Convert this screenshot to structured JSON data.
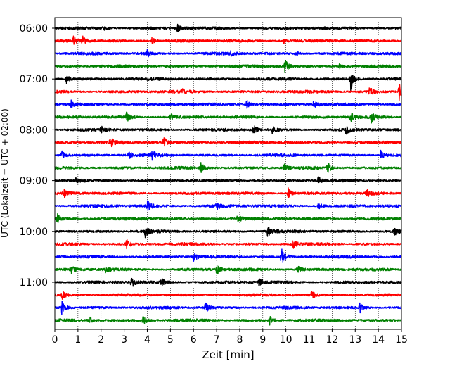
{
  "chart_data": {
    "type": "line",
    "title": "",
    "xlabel": "Zeit  [min]",
    "ylabel": "UTC (Lokalzeit = UTC + 02:00)",
    "xlim": [
      0,
      15
    ],
    "x_ticks": [
      0,
      1,
      2,
      3,
      4,
      5,
      6,
      7,
      8,
      9,
      10,
      11,
      12,
      13,
      14,
      15
    ],
    "y_tick_labels": [
      "06:00",
      "07:00",
      "08:00",
      "09:00",
      "10:00",
      "11:00"
    ],
    "grid": "vertical-dotted",
    "legend": "none",
    "traces_per_hour": 4,
    "trace_colors": [
      "#000000",
      "#ff0000",
      "#0000ff",
      "#008000"
    ],
    "traces": [
      {
        "start": "06:00",
        "color": "#000000",
        "events": [
          {
            "t": 5.3,
            "a": 0.5
          },
          {
            "t": 2.1,
            "a": 0.3
          }
        ]
      },
      {
        "start": "06:15",
        "color": "#ff0000",
        "events": [
          {
            "t": 0.8,
            "a": 0.6
          },
          {
            "t": 1.2,
            "a": 0.5
          },
          {
            "t": 4.2,
            "a": 0.4
          },
          {
            "t": 9.9,
            "a": 0.3
          }
        ]
      },
      {
        "start": "06:30",
        "color": "#0000ff",
        "events": [
          {
            "t": 4.0,
            "a": 0.4
          },
          {
            "t": 7.6,
            "a": 0.3
          },
          {
            "t": 10.4,
            "a": 0.3
          }
        ]
      },
      {
        "start": "06:45",
        "color": "#008000",
        "events": [
          {
            "t": 9.95,
            "a": 0.8
          },
          {
            "t": 12.3,
            "a": 0.3
          }
        ]
      },
      {
        "start": "07:00",
        "color": "#000000",
        "events": [
          {
            "t": 0.5,
            "a": 0.5
          },
          {
            "t": 12.8,
            "a": 1.4
          }
        ]
      },
      {
        "start": "07:15",
        "color": "#ff0000",
        "events": [
          {
            "t": 5.5,
            "a": 0.3
          },
          {
            "t": 13.6,
            "a": 0.6
          },
          {
            "t": 14.9,
            "a": 1.0
          }
        ]
      },
      {
        "start": "07:30",
        "color": "#0000ff",
        "events": [
          {
            "t": 0.7,
            "a": 0.4
          },
          {
            "t": 8.3,
            "a": 0.5
          },
          {
            "t": 11.2,
            "a": 0.4
          }
        ]
      },
      {
        "start": "07:45",
        "color": "#008000",
        "events": [
          {
            "t": 3.1,
            "a": 0.6
          },
          {
            "t": 5.0,
            "a": 0.4
          },
          {
            "t": 12.8,
            "a": 0.5
          },
          {
            "t": 13.7,
            "a": 0.6
          }
        ]
      },
      {
        "start": "08:00",
        "color": "#000000",
        "events": [
          {
            "t": 2.0,
            "a": 0.4
          },
          {
            "t": 8.6,
            "a": 0.5
          },
          {
            "t": 9.4,
            "a": 0.4
          },
          {
            "t": 12.6,
            "a": 0.5
          }
        ]
      },
      {
        "start": "08:15",
        "color": "#ff0000",
        "events": [
          {
            "t": 2.4,
            "a": 0.6
          },
          {
            "t": 4.7,
            "a": 0.7
          }
        ]
      },
      {
        "start": "08:30",
        "color": "#0000ff",
        "events": [
          {
            "t": 0.3,
            "a": 0.6
          },
          {
            "t": 3.2,
            "a": 0.5
          },
          {
            "t": 4.2,
            "a": 0.6
          },
          {
            "t": 14.1,
            "a": 0.5
          }
        ]
      },
      {
        "start": "08:45",
        "color": "#008000",
        "events": [
          {
            "t": 6.3,
            "a": 0.6
          },
          {
            "t": 9.9,
            "a": 0.5
          },
          {
            "t": 11.8,
            "a": 0.6
          }
        ]
      },
      {
        "start": "09:00",
        "color": "#000000",
        "events": [
          {
            "t": 0.9,
            "a": 0.4
          },
          {
            "t": 11.4,
            "a": 0.5
          }
        ]
      },
      {
        "start": "09:15",
        "color": "#ff0000",
        "events": [
          {
            "t": 0.4,
            "a": 0.4
          },
          {
            "t": 10.1,
            "a": 0.6
          },
          {
            "t": 13.5,
            "a": 0.5
          }
        ]
      },
      {
        "start": "09:30",
        "color": "#0000ff",
        "events": [
          {
            "t": 4.0,
            "a": 0.7
          },
          {
            "t": 7.0,
            "a": 0.4
          },
          {
            "t": 11.4,
            "a": 0.4
          }
        ]
      },
      {
        "start": "09:45",
        "color": "#008000",
        "events": [
          {
            "t": 0.1,
            "a": 0.6
          },
          {
            "t": 7.9,
            "a": 0.4
          }
        ]
      },
      {
        "start": "10:00",
        "color": "#000000",
        "events": [
          {
            "t": 3.9,
            "a": 0.7
          },
          {
            "t": 9.2,
            "a": 0.6
          },
          {
            "t": 14.7,
            "a": 0.4
          }
        ]
      },
      {
        "start": "10:15",
        "color": "#ff0000",
        "events": [
          {
            "t": 3.1,
            "a": 0.5
          },
          {
            "t": 10.3,
            "a": 0.5
          }
        ]
      },
      {
        "start": "10:30",
        "color": "#0000ff",
        "events": [
          {
            "t": 6.0,
            "a": 0.5
          },
          {
            "t": 9.8,
            "a": 1.2
          }
        ]
      },
      {
        "start": "10:45",
        "color": "#008000",
        "events": [
          {
            "t": 0.7,
            "a": 0.5
          },
          {
            "t": 2.2,
            "a": 0.4
          },
          {
            "t": 7.0,
            "a": 0.6
          },
          {
            "t": 10.5,
            "a": 0.4
          }
        ]
      },
      {
        "start": "11:00",
        "color": "#000000",
        "events": [
          {
            "t": 3.3,
            "a": 0.7
          },
          {
            "t": 4.6,
            "a": 0.5
          },
          {
            "t": 8.8,
            "a": 0.6
          }
        ]
      },
      {
        "start": "11:15",
        "color": "#ff0000",
        "events": [
          {
            "t": 0.3,
            "a": 0.6
          },
          {
            "t": 11.1,
            "a": 0.4
          }
        ]
      },
      {
        "start": "11:30",
        "color": "#0000ff",
        "events": [
          {
            "t": 0.3,
            "a": 0.8
          },
          {
            "t": 6.5,
            "a": 0.7
          },
          {
            "t": 13.2,
            "a": 0.6
          }
        ]
      },
      {
        "start": "11:45",
        "color": "#008000",
        "events": [
          {
            "t": 1.5,
            "a": 0.4
          },
          {
            "t": 3.8,
            "a": 0.6
          },
          {
            "t": 9.3,
            "a": 0.5
          }
        ]
      }
    ]
  }
}
